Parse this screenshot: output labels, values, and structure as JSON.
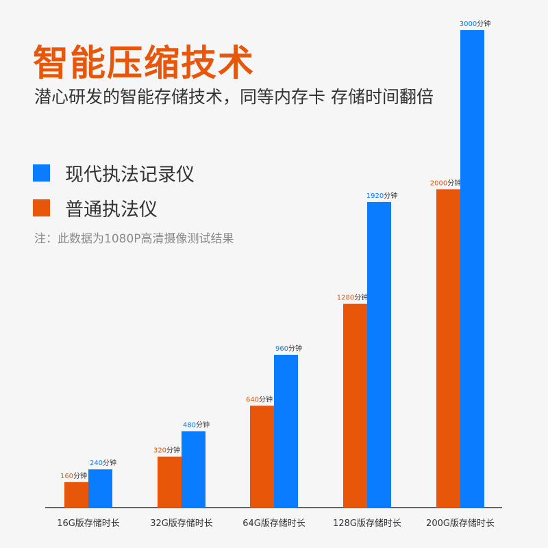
{
  "header": {
    "title": "智能压缩技术",
    "subtitle": "潜心研发的智能存储技术，同等内存卡 存储时间翻倍",
    "note": "注：此数据为1080P高清摄像测试结果"
  },
  "colors": {
    "orange": "#e8560a",
    "blue": "#0a7cff",
    "text": "#333333",
    "axis": "#333333"
  },
  "chart_data": {
    "type": "bar",
    "categories": [
      "16G版存储时长",
      "32G版存储时长",
      "64G版存储时长",
      "128G版存储时长",
      "200G版存储时长"
    ],
    "series": [
      {
        "name": "普通执法仪",
        "color": "#e8560a",
        "values": [
          160,
          320,
          640,
          1280,
          2000
        ],
        "labels": [
          "160分钟",
          "320分钟",
          "640分钟",
          "1280分钟",
          "2000分钟"
        ]
      },
      {
        "name": "现代执法记录仪",
        "color": "#0a7cff",
        "values": [
          240,
          480,
          960,
          1920,
          3000
        ],
        "labels": [
          "240分钟",
          "480分钟",
          "960分钟",
          "1920分钟",
          "3000分钟"
        ]
      }
    ],
    "legend": [
      {
        "name": "现代执法记录仪",
        "color": "#0a7cff"
      },
      {
        "name": "普通执法仪",
        "color": "#e8560a"
      }
    ],
    "ylim": [
      0,
      3000
    ],
    "grid": false,
    "legend_position": "top-left"
  }
}
